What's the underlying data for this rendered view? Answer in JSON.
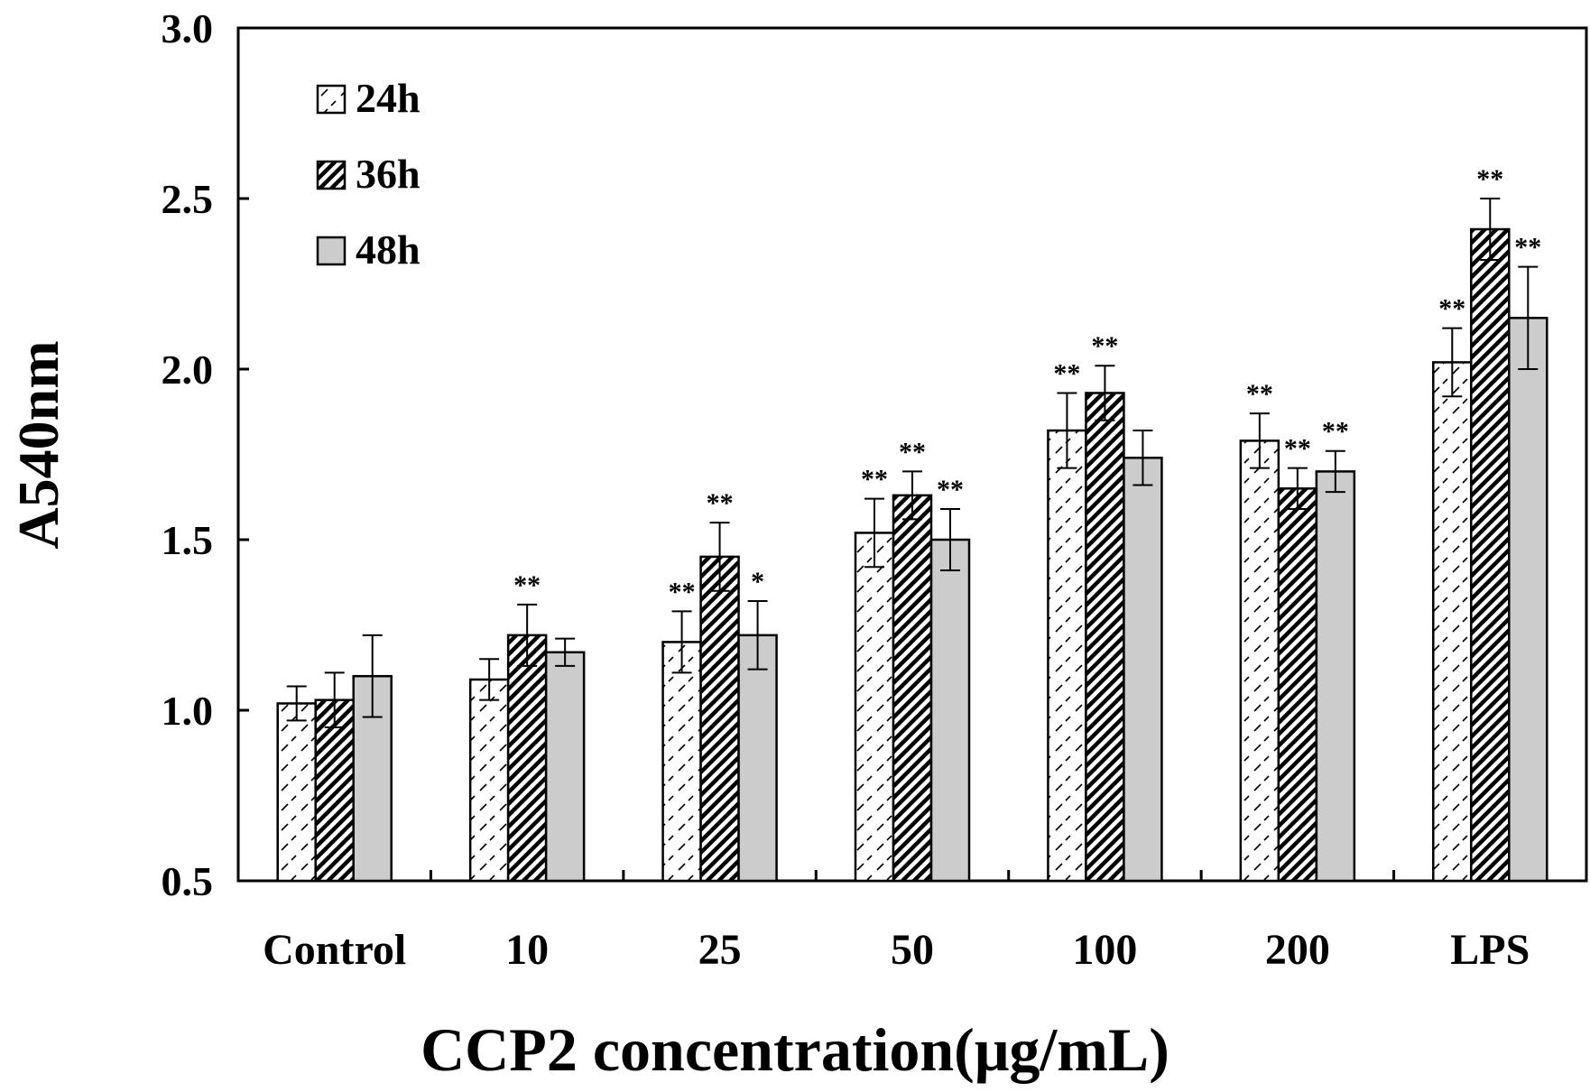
{
  "chart_data": {
    "type": "bar",
    "title": "",
    "xlabel": "CCP2 concentration(μg/mL)",
    "ylabel": "A540nm",
    "ylim": [
      0.5,
      3.0
    ],
    "yticks": [
      "0.5",
      "1.0",
      "1.5",
      "2.0",
      "2.5",
      "3.0"
    ],
    "ytick_values": [
      0.5,
      1.0,
      1.5,
      2.0,
      2.5,
      3.0
    ],
    "categories": [
      "Control",
      "10",
      "25",
      "50",
      "100",
      "200",
      "LPS"
    ],
    "legend_position": "top-left",
    "series": [
      {
        "name": "24h",
        "pattern": "light-diagonal-dashed",
        "values": [
          1.02,
          1.09,
          1.2,
          1.52,
          1.82,
          1.79,
          2.02
        ],
        "errors": [
          0.05,
          0.06,
          0.09,
          0.1,
          0.11,
          0.08,
          0.1
        ],
        "significance": [
          "",
          "",
          "**",
          "**",
          "**",
          "**",
          "**"
        ]
      },
      {
        "name": "36h",
        "pattern": "dense-diagonal-hatch",
        "values": [
          1.03,
          1.22,
          1.45,
          1.63,
          1.93,
          1.65,
          2.41
        ],
        "errors": [
          0.08,
          0.09,
          0.1,
          0.07,
          0.08,
          0.06,
          0.09
        ],
        "significance": [
          "",
          "**",
          "**",
          "**",
          "**",
          "**",
          "**"
        ]
      },
      {
        "name": "48h",
        "pattern": "solid-gray",
        "values": [
          1.1,
          1.17,
          1.22,
          1.5,
          1.74,
          1.7,
          2.15
        ],
        "errors": [
          0.12,
          0.04,
          0.1,
          0.09,
          0.08,
          0.06,
          0.15
        ],
        "significance": [
          "",
          "",
          "*",
          "**",
          "",
          "**",
          "**"
        ]
      }
    ],
    "colors": {
      "bar_fill_gray": "#cccccc",
      "stroke": "#000000",
      "background": "#ffffff"
    }
  }
}
